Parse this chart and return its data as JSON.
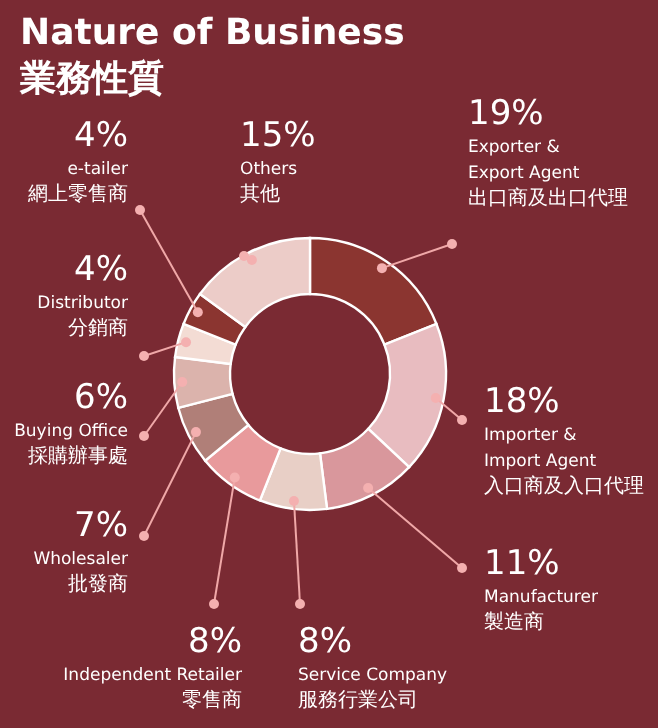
{
  "chart_data": {
    "type": "donut",
    "title": "Nature of Business",
    "subtitle": "業務性質",
    "categories": [
      "Exporter &\nExport Agent\n出口商及出口代理",
      "Importer &\nImport Agent\n入口商及入口代理",
      "Manufacturer\n製造商",
      "Service Company\n服務行業公司",
      "Independent Retailer\n零售商",
      "Wholesaler\n批發商",
      "Buying Office\n採購辦事處",
      "Distributor\n分銷商",
      "e-tailer\n網上零售商",
      "Others\n其他"
    ],
    "values": [
      19,
      18,
      11,
      8,
      8,
      7,
      6,
      4,
      4,
      15
    ],
    "colors": [
      "#8b3530",
      "#e8bcc0",
      "#d9979c",
      "#e8cfc6",
      "#e89a9c",
      "#b07f78",
      "#dbb3ac",
      "#f3dcd4",
      "#8b3530",
      "#ecccc8"
    ],
    "value_labels": [
      "19%",
      "18%",
      "11%",
      "8%",
      "8%",
      "7%",
      "6%",
      "4%",
      "4%",
      "15%"
    ]
  }
}
